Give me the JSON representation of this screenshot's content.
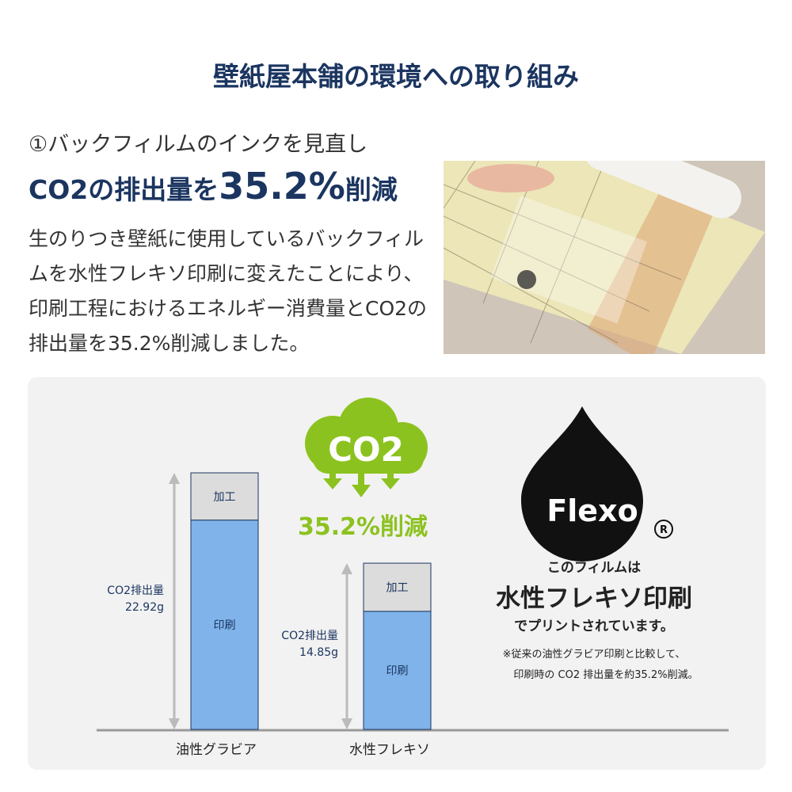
{
  "title": "壁紙屋本舗の環境への取り組み",
  "section": {
    "subtitle": "①バックフィルムのインクを見直し",
    "headline_pre": "CO2の排出量を",
    "headline_value": "35.2%",
    "headline_post": "削減",
    "body": "生のりつき壁紙に使用しているバックフィルムを水性フレキソ印刷に変えたことにより、印刷工程におけるエネルギー消費量とCO2の排出量を35.2%削減しました。",
    "photo": "wallpaper-roll-back-film-photo"
  },
  "badge": {
    "cloud_text": "CO2",
    "reduction": "35.2%削減",
    "color": "#8cc21f"
  },
  "flexo": {
    "logo_text": "Flexo",
    "registered": "®",
    "line1": "このフィルムは",
    "line2": "水性フレキソ印刷",
    "line3": "でプリントされています。",
    "note1": "※従来の油性グラビア印刷と比較して、",
    "note2": "印刷時の CO2 排出量を約35.2%削減。"
  },
  "chart_data": {
    "type": "bar",
    "stacked": true,
    "categories": [
      "油性グラビア",
      "水性フレキソ"
    ],
    "series": [
      {
        "name": "印刷",
        "values": [
          18.7,
          10.55
        ],
        "color": "#7fb3ea"
      },
      {
        "name": "加工",
        "values": [
          4.22,
          4.3
        ],
        "color": "#dcdcdc"
      }
    ],
    "totals": [
      22.92,
      14.85
    ],
    "total_labels": [
      {
        "line1": "CO2排出量",
        "line2": "22.92g"
      },
      {
        "line1": "CO2排出量",
        "line2": "14.85g"
      }
    ],
    "ylim": [
      0,
      22.92
    ]
  }
}
